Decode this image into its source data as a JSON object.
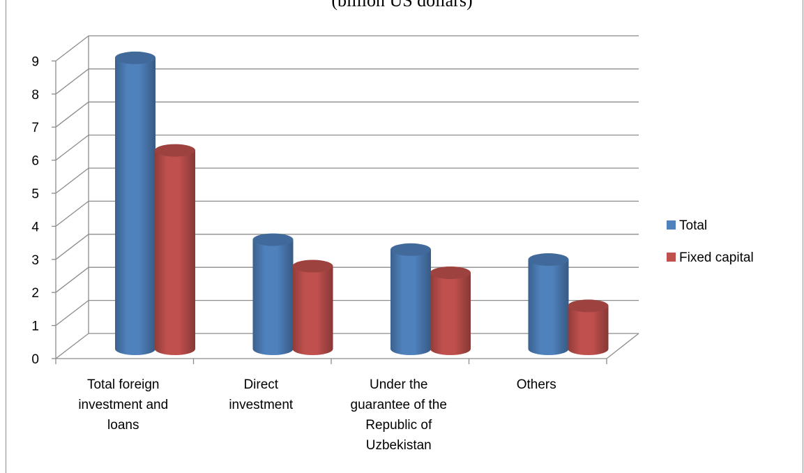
{
  "caption": "(billion US dollars)",
  "chart_data": {
    "type": "bar",
    "title": "",
    "xlabel": "",
    "ylabel": "",
    "ylim": [
      0,
      9
    ],
    "y_ticks": [
      "0",
      "1",
      "2",
      "3",
      "4",
      "5",
      "6",
      "7",
      "8",
      "9"
    ],
    "categories": [
      "Total foreign investment and loans",
      "Direct investment",
      "Under the guarantee of the Republic of Uzbekistan",
      "Others"
    ],
    "category_lines": [
      [
        "Total foreign",
        "investment and",
        "loans"
      ],
      [
        "Direct",
        "investment"
      ],
      [
        "Under the",
        "guarantee of the",
        "Republic of",
        "Uzbekistan"
      ],
      [
        "Others"
      ]
    ],
    "series": [
      {
        "name": "Total",
        "values": [
          8.8,
          3.3,
          3.0,
          2.7
        ],
        "color": "#4f81bd"
      },
      {
        "name": "Fixed capital",
        "values": [
          6.0,
          2.5,
          2.3,
          1.3
        ],
        "color": "#c0504d"
      }
    ],
    "grid": true,
    "legend": "right",
    "style": "3d-cylinder"
  }
}
